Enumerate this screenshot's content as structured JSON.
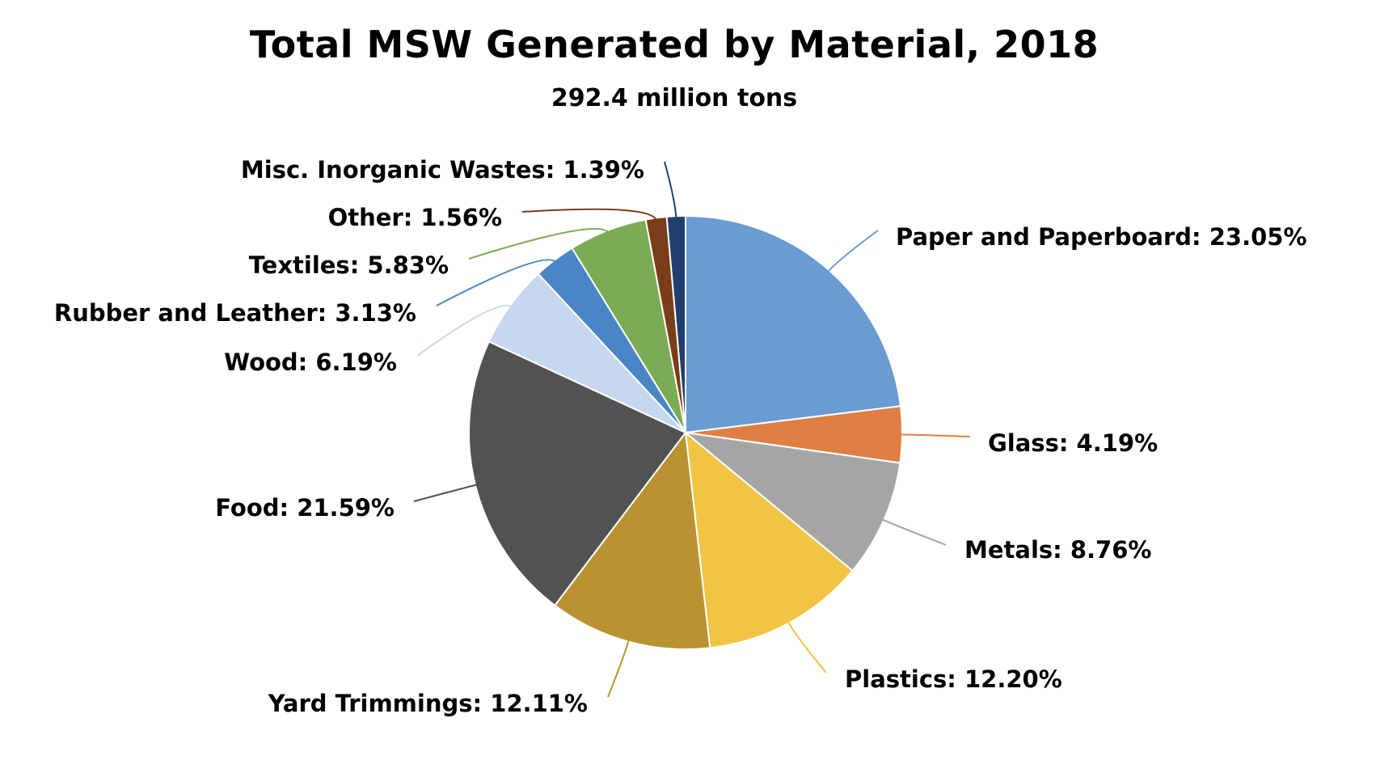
{
  "chart_data": {
    "type": "pie",
    "title": "Total MSW Generated by Material, 2018",
    "subtitle": "292.4 million tons",
    "unit": "%",
    "legend": "none",
    "slices": [
      {
        "name": "Paper and Paperboard",
        "value": 23.05,
        "label": "Paper and Paperboard: 23.05%",
        "color": "#6A9BD1"
      },
      {
        "name": "Glass",
        "value": 4.19,
        "label": "Glass: 4.19%",
        "color": "#E07F43"
      },
      {
        "name": "Metals",
        "value": 8.76,
        "label": "Metals: 8.76%",
        "color": "#A5A5A5"
      },
      {
        "name": "Plastics",
        "value": 12.2,
        "label": "Plastics: 12.20%",
        "color": "#F2C444"
      },
      {
        "name": "Yard Trimmings",
        "value": 12.11,
        "label": "Yard Trimmings: 12.11%",
        "color": "#B99333"
      },
      {
        "name": "Food",
        "value": 21.59,
        "label": "Food: 21.59%",
        "color": "#525252"
      },
      {
        "name": "Wood",
        "value": 6.19,
        "label": "Wood: 6.19%",
        "color": "#C5D8EF"
      },
      {
        "name": "Rubber and Leather",
        "value": 3.13,
        "label": "Rubber and Leather: 3.13%",
        "color": "#4A86C5"
      },
      {
        "name": "Textiles",
        "value": 5.83,
        "label": "Textiles: 5.83%",
        "color": "#7BAB55"
      },
      {
        "name": "Other",
        "value": 1.56,
        "label": "Other: 1.56%",
        "color": "#7A3D1A"
      },
      {
        "name": "Misc. Inorganic Wastes",
        "value": 1.39,
        "label": "Misc. Inorganic Wastes: 1.39%",
        "color": "#223E6E"
      }
    ]
  }
}
